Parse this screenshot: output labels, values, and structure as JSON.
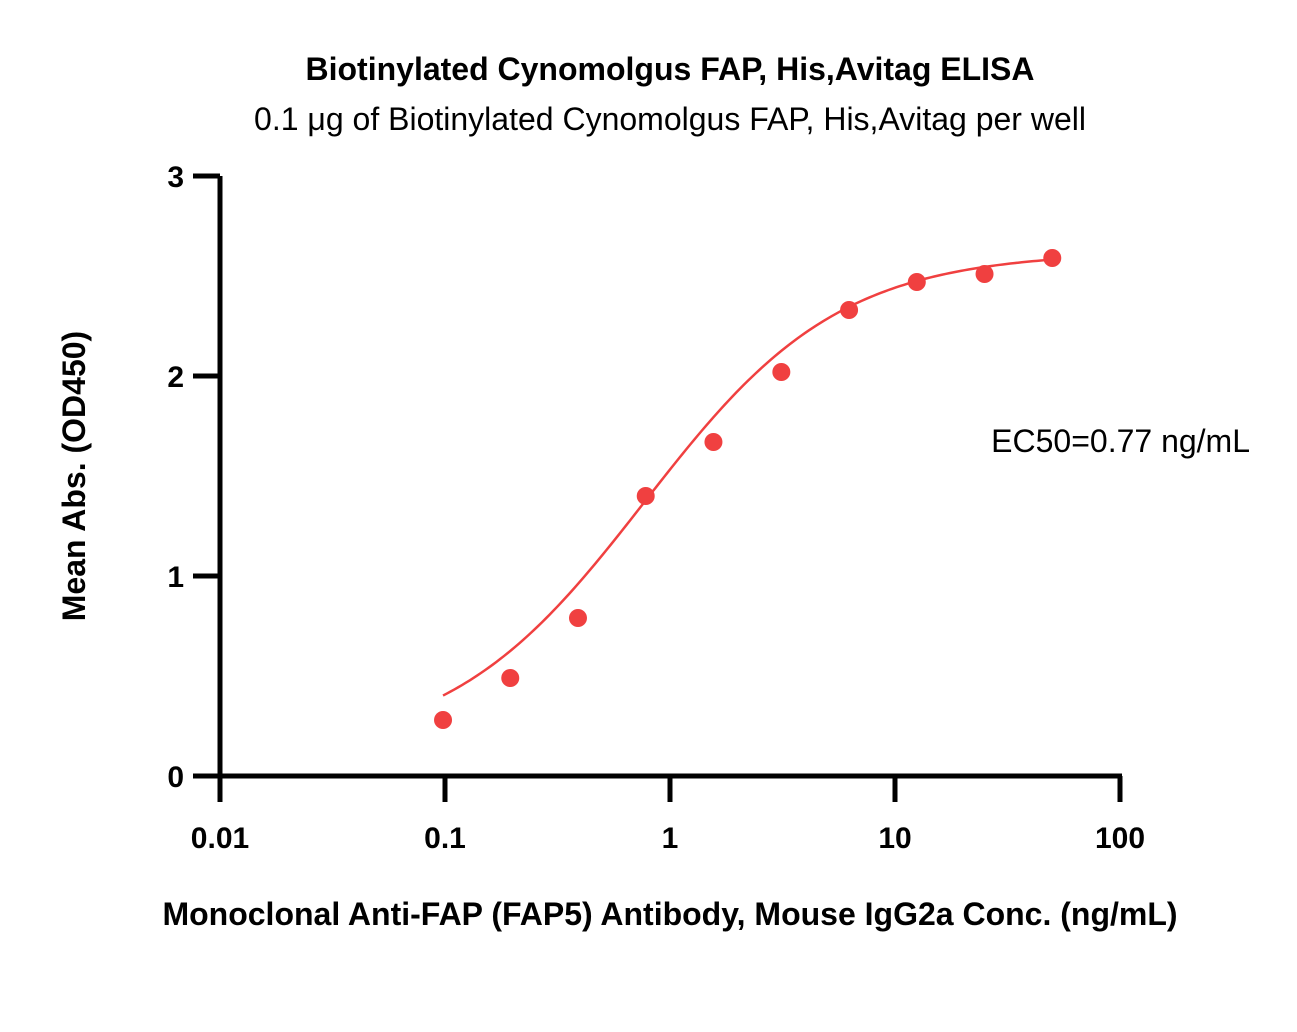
{
  "chart_data": {
    "type": "scatter",
    "title": "Biotinylated Cynomolgus FAP, His,Avitag ELISA",
    "subtitle": "0.1 μg of Biotinylated Cynomolgus FAP, His,Avitag per well",
    "xlabel": "Monoclonal Anti-FAP (FAP5) Antibody, Mouse IgG2a Conc. (ng/mL)",
    "ylabel": "Mean Abs. (OD450)",
    "x_scale": "log",
    "xlim": [
      0.01,
      100
    ],
    "ylim": [
      0,
      3
    ],
    "x_ticks": [
      0.01,
      0.1,
      1,
      10,
      100
    ],
    "x_tick_labels": [
      "0.01",
      "0.1",
      "1",
      "10",
      "100"
    ],
    "y_ticks": [
      0,
      1,
      2,
      3
    ],
    "y_tick_labels": [
      "0",
      "1",
      "2",
      "3"
    ],
    "grid": false,
    "color": "#f04040",
    "series": [
      {
        "x": [
          0.098,
          0.195,
          0.39,
          0.78,
          1.56,
          3.125,
          6.25,
          12.5,
          25,
          50
        ],
        "y": [
          0.28,
          0.49,
          0.79,
          1.4,
          1.67,
          2.02,
          2.33,
          2.47,
          2.51,
          2.59
        ]
      }
    ],
    "fit": {
      "model": "4PL",
      "bottom": 0.12,
      "top": 2.62,
      "ec50": 0.77,
      "hill": 1.0
    },
    "annotation": "EC50=0.77 ng/mL"
  }
}
